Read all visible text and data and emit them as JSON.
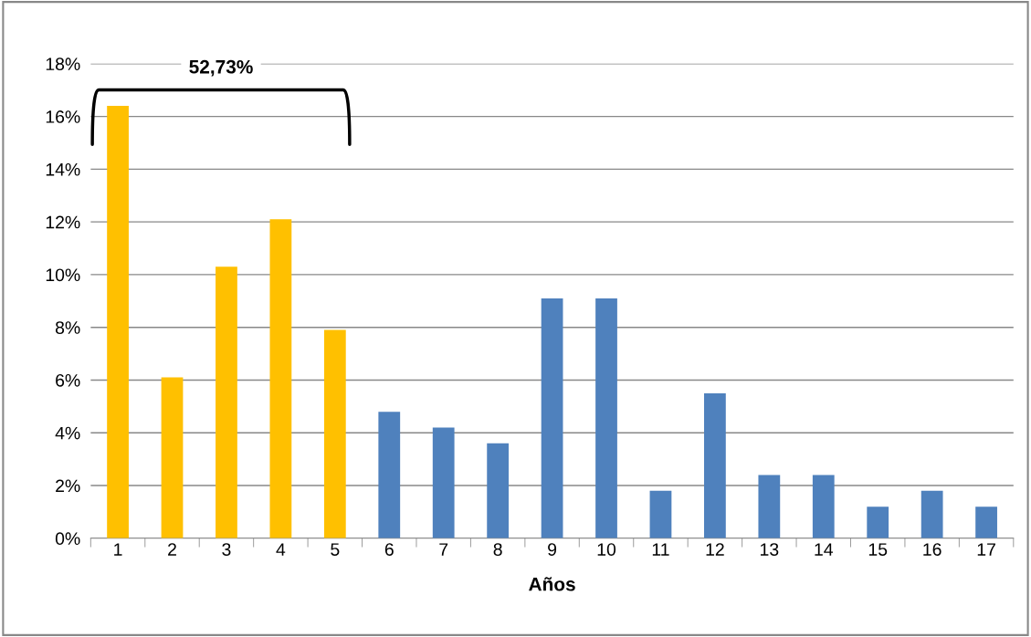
{
  "chart_data": {
    "type": "bar",
    "xlabel": "Años",
    "categories": [
      "1",
      "2",
      "3",
      "4",
      "5",
      "6",
      "7",
      "8",
      "9",
      "10",
      "11",
      "12",
      "13",
      "14",
      "15",
      "16",
      "17"
    ],
    "values": [
      16.4,
      6.1,
      10.3,
      12.1,
      7.9,
      4.8,
      4.2,
      3.6,
      9.1,
      9.1,
      1.8,
      5.5,
      2.4,
      2.4,
      1.2,
      1.8,
      1.2
    ],
    "colors": [
      "#ffc000",
      "#ffc000",
      "#ffc000",
      "#ffc000",
      "#ffc000",
      "#4f81bd",
      "#4f81bd",
      "#4f81bd",
      "#4f81bd",
      "#4f81bd",
      "#4f81bd",
      "#4f81bd",
      "#4f81bd",
      "#4f81bd",
      "#4f81bd",
      "#4f81bd",
      "#4f81bd"
    ],
    "ylim": [
      0,
      18
    ],
    "yticks": [
      {
        "value": 0,
        "label": "0%"
      },
      {
        "value": 2,
        "label": "2%"
      },
      {
        "value": 4,
        "label": "4%"
      },
      {
        "value": 6,
        "label": "6%"
      },
      {
        "value": 8,
        "label": "8%"
      },
      {
        "value": 10,
        "label": "10%"
      },
      {
        "value": 12,
        "label": "12%"
      },
      {
        "value": 14,
        "label": "14%"
      },
      {
        "value": 16,
        "label": "16%"
      },
      {
        "value": 18,
        "label": "18%"
      }
    ],
    "grid": "y",
    "annotations": [
      "52,73%"
    ]
  }
}
